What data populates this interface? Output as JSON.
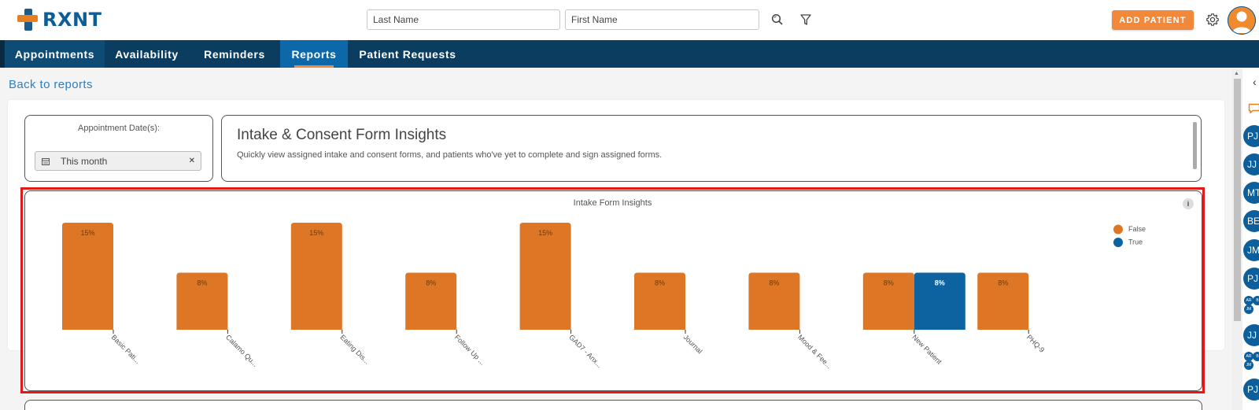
{
  "brand": {
    "name": "RXNT"
  },
  "header": {
    "last_name_placeholder": "Last Name",
    "first_name_placeholder": "First Name",
    "add_patient_label": "ADD PATIENT"
  },
  "nav": {
    "tabs": [
      {
        "label": "Appointments"
      },
      {
        "label": "Availability"
      },
      {
        "label": "Reminders"
      },
      {
        "label": "Reports"
      },
      {
        "label": "Patient Requests"
      }
    ],
    "active_tab": "Reports"
  },
  "back_link": "Back to reports",
  "date_filter": {
    "label": "Appointment Date(s):",
    "value": "This month"
  },
  "report": {
    "title": "Intake & Consent Form Insights",
    "description": "Quickly view assigned intake and consent forms, and patients who've yet to complete and sign assigned forms."
  },
  "chart_data": {
    "type": "bar",
    "title": "Intake Form Insights",
    "categories": [
      "Basic Pati...",
      "Calamo Qu...",
      "Eating Dis...",
      "Follow Up ...",
      "GAD7 - Anx...",
      "Journal",
      "Mood & Fee...",
      "New Patient",
      "PHQ-9"
    ],
    "series": [
      {
        "name": "False",
        "color": "#dd7726",
        "values": [
          15,
          8,
          15,
          8,
          15,
          8,
          8,
          8,
          8
        ],
        "labels": [
          "15%",
          "8%",
          "15%",
          "8%",
          "15%",
          "8%",
          "8%",
          "8%",
          "8%"
        ]
      },
      {
        "name": "True",
        "color": "#0d62a0",
        "values": [
          null,
          null,
          null,
          null,
          null,
          null,
          null,
          8,
          null
        ],
        "labels": [
          "",
          "",
          "",
          "",
          "",
          "",
          "",
          "8%",
          ""
        ]
      }
    ],
    "ylim": [
      0,
      15
    ],
    "legend_position": "top-right",
    "grid": false
  },
  "sidebar": {
    "chips": [
      "PJ",
      "JJ",
      "MT",
      "BE",
      "JM",
      "PJ",
      "JJ",
      "PJ"
    ],
    "mini_groups": [
      [
        "AR",
        "B",
        "JM"
      ],
      [
        "AR",
        "B",
        "JM"
      ]
    ]
  },
  "colors": {
    "brand_blue": "#0d5d96",
    "brand_orange": "#f2893a",
    "nav_bg": "#0b3d61",
    "nav_active": "#0c68a8"
  }
}
